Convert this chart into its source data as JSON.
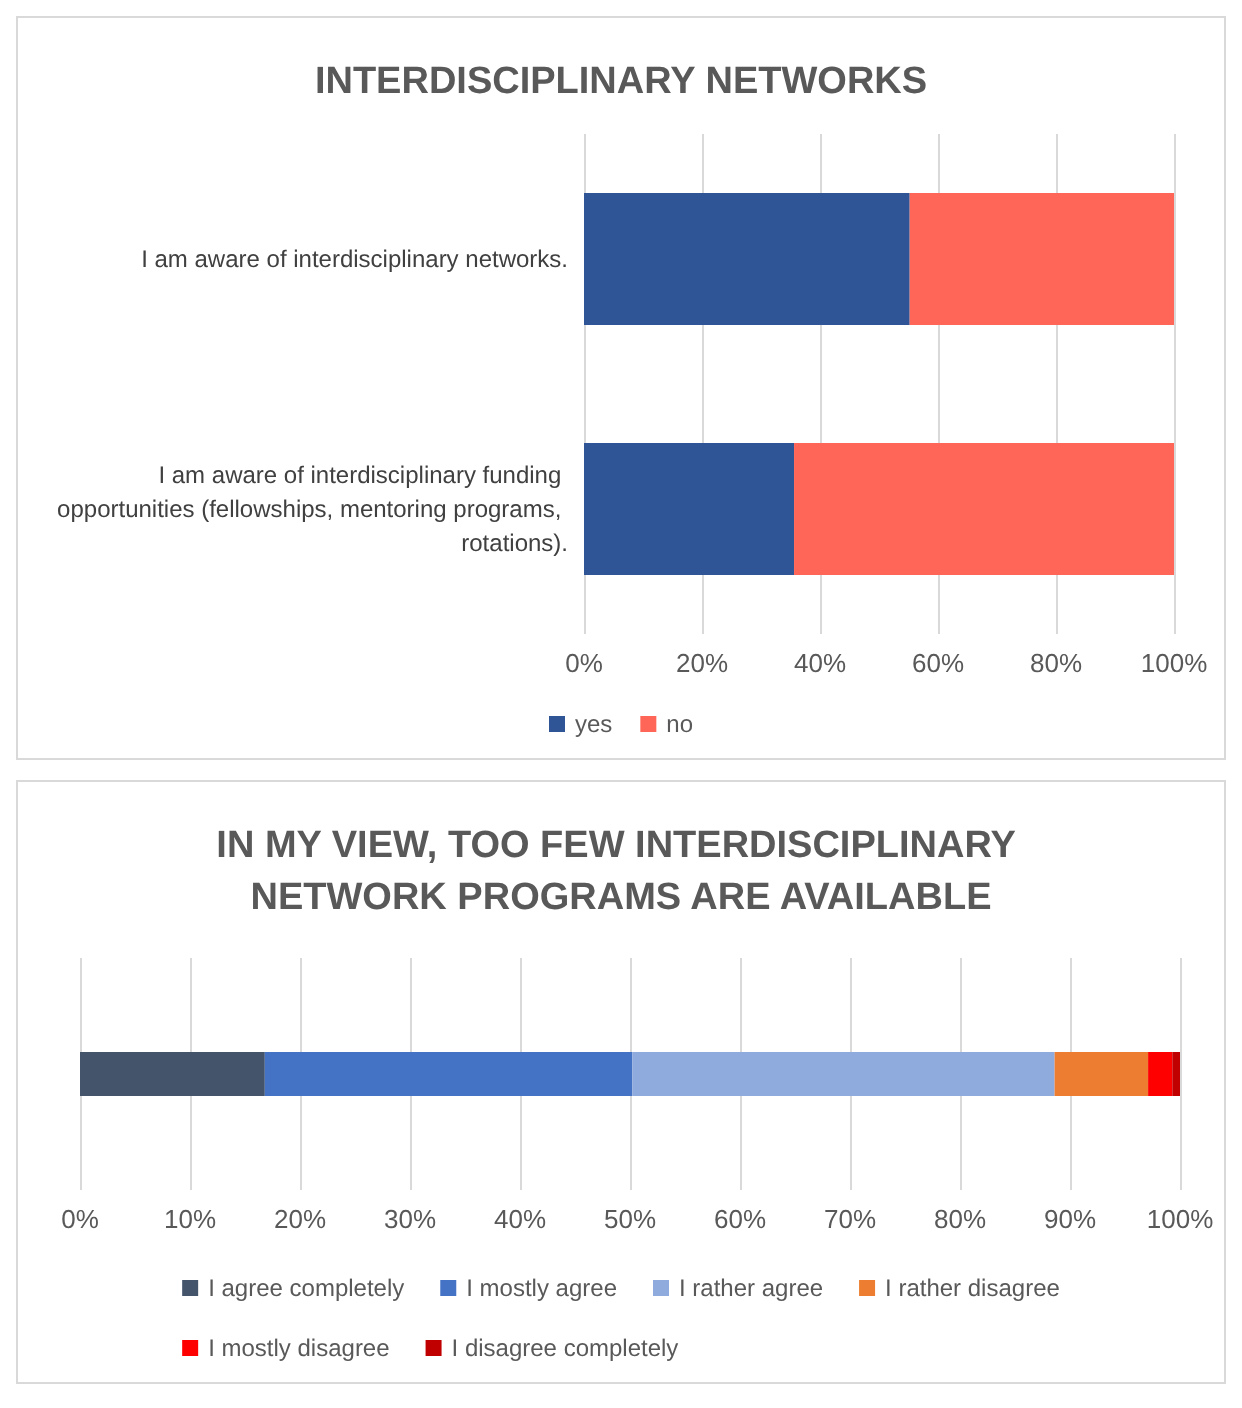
{
  "chart_data": [
    {
      "type": "bar",
      "title": "INTERDISCIPLINARY NETWORKS",
      "orientation": "horizontal",
      "stacked": true,
      "categories": [
        "I am aware of interdisciplinary networks.",
        "I am aware of interdisciplinary funding opportunities (fellowships, mentoring programs, rotations)."
      ],
      "series": [
        {
          "name": "yes",
          "color": "#2f5597",
          "values": [
            55.2,
            35.6
          ]
        },
        {
          "name": "no",
          "color": "#ff6657",
          "values": [
            44.8,
            64.4
          ]
        }
      ],
      "xlim": [
        0,
        100
      ],
      "xticks": [
        {
          "value": 0,
          "label": "0%"
        },
        {
          "value": 20,
          "label": "20%"
        },
        {
          "value": 40,
          "label": "40%"
        },
        {
          "value": 60,
          "label": "60%"
        },
        {
          "value": 80,
          "label": "80%"
        },
        {
          "value": 100,
          "label": "100%"
        }
      ],
      "grid": "x",
      "legend": "bottom"
    },
    {
      "type": "bar",
      "title": "IN MY VIEW, TOO FEW INTERDISCIPLINARY NETWORK PROGRAMS ARE AVAILABLE",
      "orientation": "horizontal",
      "stacked": true,
      "categories": [
        null
      ],
      "series": [
        {
          "name": "I agree completely",
          "color": "#44546a",
          "values": [
            16.8
          ]
        },
        {
          "name": "I mostly agree",
          "color": "#4472c4",
          "values": [
            33.4
          ]
        },
        {
          "name": "I rather agree",
          "color": "#8faadc",
          "values": [
            38.4
          ]
        },
        {
          "name": "I rather disagree",
          "color": "#ed7d31",
          "values": [
            8.5
          ]
        },
        {
          "name": "I mostly disagree",
          "color": "#ff0000",
          "values": [
            2.2
          ]
        },
        {
          "name": "I disagree completely",
          "color": "#c00000",
          "values": [
            0.7
          ]
        }
      ],
      "xlim": [
        0,
        100
      ],
      "xticks": [
        {
          "value": 0,
          "label": "0%"
        },
        {
          "value": 10,
          "label": "10%"
        },
        {
          "value": 20,
          "label": "20%"
        },
        {
          "value": 30,
          "label": "30%"
        },
        {
          "value": 40,
          "label": "40%"
        },
        {
          "value": 50,
          "label": "50%"
        },
        {
          "value": 60,
          "label": "60%"
        },
        {
          "value": 70,
          "label": "70%"
        },
        {
          "value": 80,
          "label": "80%"
        },
        {
          "value": 90,
          "label": "90%"
        },
        {
          "value": 100,
          "label": "100%"
        }
      ],
      "grid": "x",
      "legend": "bottom"
    }
  ]
}
